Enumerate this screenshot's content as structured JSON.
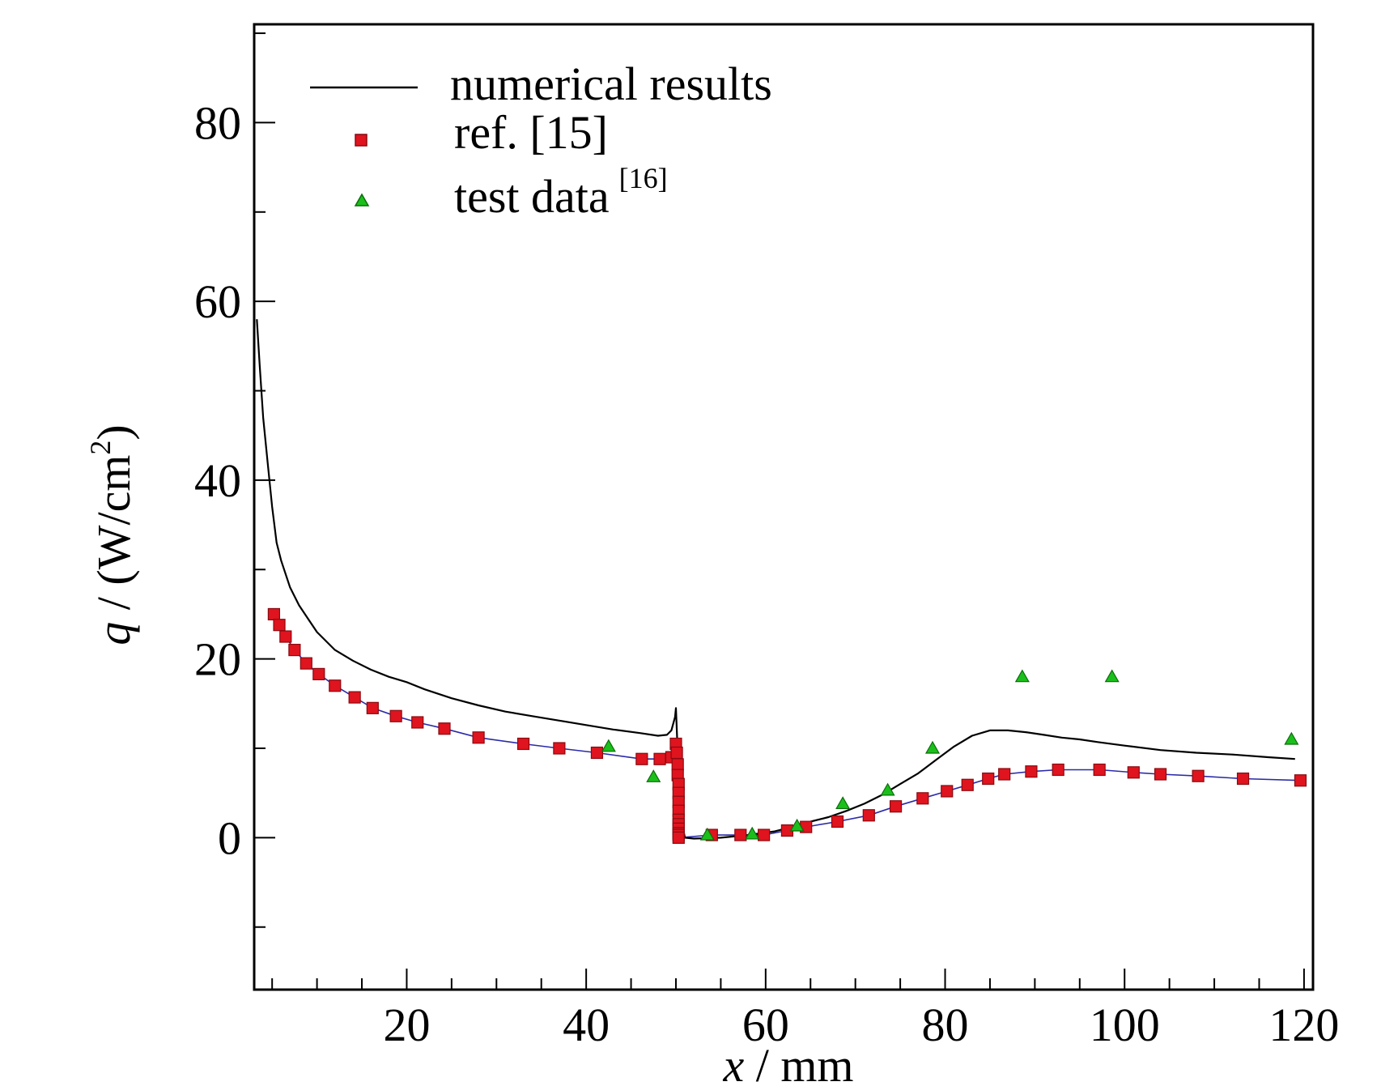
{
  "chart_data": {
    "type": "line",
    "xlabel": {
      "var": "x",
      "sep": " / ",
      "unit": "mm"
    },
    "ylabel": {
      "var": "q",
      "sep": " / ",
      "unit": "(W/cm",
      "sup": "2",
      "close": ")"
    },
    "xlim": [
      3,
      121
    ],
    "ylim": [
      -17,
      91
    ],
    "xticks": [
      20,
      40,
      60,
      80,
      100,
      120
    ],
    "yticks": [
      0,
      20,
      40,
      60,
      80
    ],
    "grid": false,
    "legend_position": "top-left",
    "legend": [
      {
        "label": "numerical results",
        "sup": ""
      },
      {
        "label": "ref. [15]",
        "sup": ""
      },
      {
        "label": "test data",
        "sup": "[16]"
      }
    ],
    "colors": {
      "numerical": "#000000",
      "ref_marker": "#e0141e",
      "ref_marker_edge": "#8a0a10",
      "ref_line": "#2b2ba8",
      "test_marker": "#1bbf1b",
      "test_marker_edge": "#0a6e0a"
    },
    "series": [
      {
        "name": "numerical results",
        "kind": "line",
        "x": [
          3.3,
          3.6,
          4,
          4.5,
          5,
          5.5,
          6,
          7,
          8,
          9,
          10,
          12,
          14,
          16,
          18,
          20,
          22,
          25,
          28,
          31,
          34,
          37,
          40,
          43,
          46,
          48,
          49,
          49.5,
          49.9,
          50,
          50.1,
          50.3,
          50.6,
          51,
          52,
          55,
          58,
          61,
          63,
          65,
          67,
          69,
          71,
          73,
          75,
          77,
          79,
          81,
          83,
          85,
          87,
          89,
          91,
          93,
          95,
          97,
          100,
          104,
          108,
          112,
          116,
          119
        ],
        "y": [
          58,
          53,
          47,
          42,
          37,
          33,
          31,
          28,
          26,
          24.5,
          23,
          21,
          19.8,
          18.8,
          18,
          17.4,
          16.6,
          15.6,
          14.8,
          14.1,
          13.6,
          13.1,
          12.6,
          12.1,
          11.7,
          11.4,
          11.5,
          12,
          13.5,
          14.5,
          12,
          7,
          2,
          0,
          -0.1,
          0,
          0.3,
          0.7,
          1.2,
          1.8,
          2.3,
          3,
          3.8,
          4.8,
          6,
          7.2,
          8.7,
          10.2,
          11.4,
          12,
          12,
          11.8,
          11.5,
          11.2,
          11,
          10.7,
          10.3,
          9.8,
          9.5,
          9.3,
          9,
          8.8
        ]
      },
      {
        "name": "ref. [15]",
        "kind": "line+square",
        "x": [
          5.2,
          5.8,
          6.5,
          7.5,
          8.8,
          10.2,
          12,
          14.2,
          16.2,
          18.8,
          21.2,
          24.2,
          28,
          33,
          37,
          41.2,
          46.2,
          48.2,
          49.5,
          50,
          50.1,
          50.2,
          50.2,
          50.3,
          50.3,
          50.3,
          50.3,
          50.3,
          50.3,
          50.3,
          50.3,
          50.3,
          50.3,
          54,
          57.2,
          59.8,
          62.4,
          64.5,
          68,
          71.5,
          74.5,
          77.5,
          80.2,
          82.5,
          84.8,
          86.6,
          89.6,
          92.6,
          97.2,
          101,
          104,
          108.2,
          113.2,
          119.6
        ],
        "y": [
          25,
          23.8,
          22.5,
          21,
          19.5,
          18.3,
          17,
          15.7,
          14.5,
          13.6,
          12.9,
          12.2,
          11.2,
          10.5,
          10,
          9.5,
          8.8,
          8.8,
          9,
          10.5,
          9.5,
          8.2,
          7,
          6,
          5,
          4,
          3,
          2,
          1.5,
          1,
          0.5,
          0.3,
          0,
          0.3,
          0.3,
          0.3,
          0.8,
          1.2,
          1.8,
          2.5,
          3.5,
          4.4,
          5.2,
          5.9,
          6.6,
          7.1,
          7.4,
          7.6,
          7.6,
          7.3,
          7.1,
          6.9,
          6.6,
          6.4
        ]
      },
      {
        "name": "test data",
        "kind": "triangle",
        "x": [
          42.5,
          47.5,
          53.5,
          58.5,
          63.5,
          68.6,
          73.6,
          78.6,
          88.6,
          98.6,
          118.6
        ],
        "y": [
          10.2,
          6.8,
          0.3,
          0.4,
          1.3,
          3.8,
          5.3,
          10,
          18,
          18,
          11
        ]
      }
    ]
  }
}
